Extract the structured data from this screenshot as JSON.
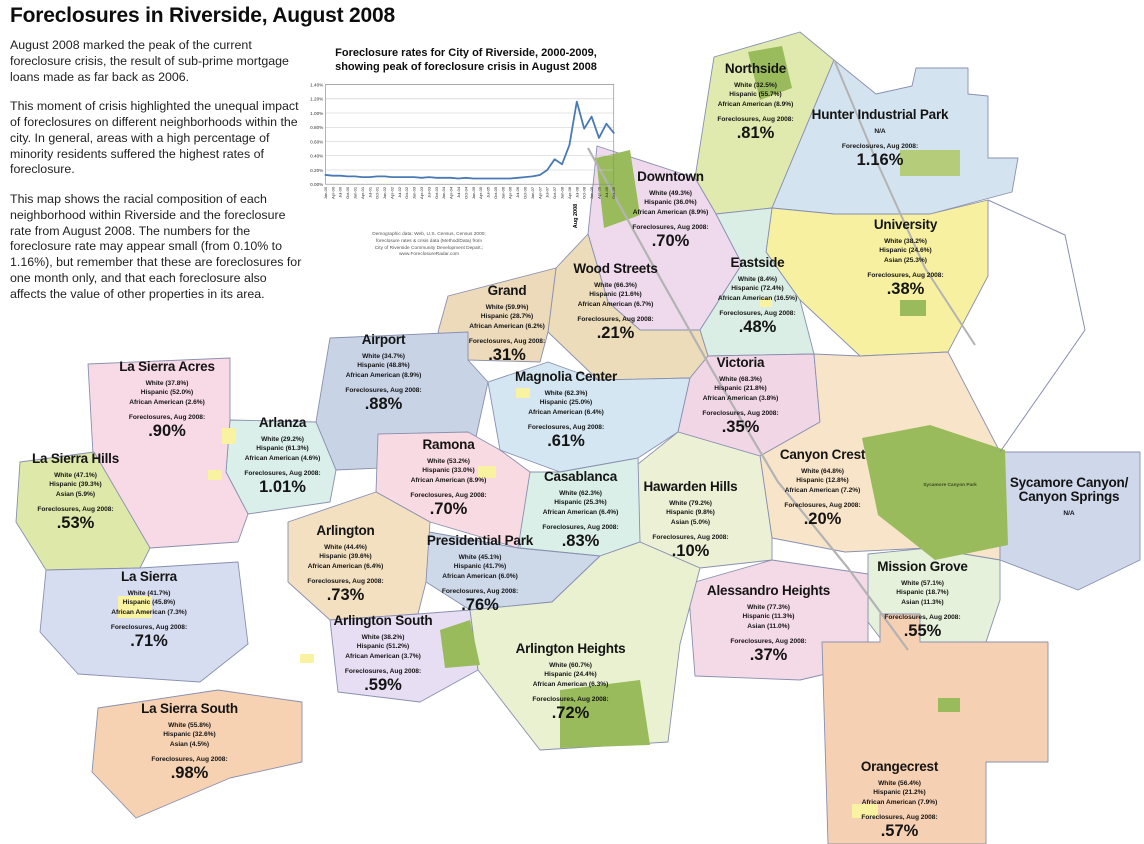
{
  "page_title": "Foreclosures in Riverside, August 2008",
  "intro": {
    "p1": "August 2008 marked the peak of the current foreclosure crisis, the result of sub-prime mortgage loans made as far back as 2006.",
    "p2": "This moment of crisis highlighted the unequal impact of foreclosures on different neighborhoods within the city. In general, areas with a high percentage of minority residents suffered the highest rates of foreclosure.",
    "p3": "This map shows the racial composition of each neighborhood within Riverside and the foreclosure rate from August 2008. The numbers for the foreclosure rate may appear small (from 0.10% to 1.16%), but remember that these are foreclosures for one month only, and that each foreclosure also affects the value of other properties in its area."
  },
  "chart": {
    "title_line1": "Foreclosure rates for City of Riverside, 2000-2009,",
    "title_line2": "showing peak of foreclosure crisis in August 2008",
    "source_lines": [
      "Demographic data: Web, U.S. Census, Census 2000;",
      "foreclosure rates & crisis data (Method/Data) from",
      "City of Riverside Community Development Depart.;",
      "www.ForeclosureRadar.com"
    ]
  },
  "chart_data": {
    "type": "line",
    "title": "Foreclosure rates for City of Riverside, 2000-2009, showing peak of foreclosure crisis in August 2008",
    "x": [
      "Jan-00",
      "Apr-00",
      "Jul-00",
      "Oct-00",
      "Jan-01",
      "Apr-01",
      "Jul-01",
      "Oct-01",
      "Jan-02",
      "Apr-02",
      "Jul-02",
      "Oct-02",
      "Jan-03",
      "Apr-03",
      "Jul-03",
      "Oct-03",
      "Jan-04",
      "Apr-04",
      "Jul-04",
      "Oct-04",
      "Jan-05",
      "Apr-05",
      "Jul-05",
      "Oct-05",
      "Jan-06",
      "Apr-06",
      "Jul-06",
      "Oct-06",
      "Jan-07",
      "Apr-07",
      "Jul-07",
      "Oct-07",
      "Jan-08",
      "Apr-08",
      "Jul-08",
      "Oct-08",
      "Jan-09",
      "Apr-09",
      "Jul-09",
      "Oct-09"
    ],
    "values": [
      0.13,
      0.12,
      0.12,
      0.11,
      0.11,
      0.1,
      0.1,
      0.11,
      0.11,
      0.1,
      0.1,
      0.1,
      0.1,
      0.09,
      0.1,
      0.09,
      0.09,
      0.09,
      0.08,
      0.09,
      0.08,
      0.08,
      0.08,
      0.08,
      0.08,
      0.08,
      0.09,
      0.1,
      0.11,
      0.13,
      0.2,
      0.35,
      0.28,
      0.55,
      1.16,
      0.78,
      0.95,
      0.65,
      0.85,
      0.72
    ],
    "ylim": [
      0,
      1.4
    ],
    "ytick_step": 0.2,
    "ylabel_format": "percent",
    "grid": true,
    "legend": "none",
    "line_color": "#4a7ab5",
    "annotation": {
      "label": "Aug 2008",
      "index": 34
    }
  },
  "labels": {
    "foreclosures_label": "Foreclosures, Aug 2008:",
    "park_label": "Sycamore Canyon Park"
  },
  "neighborhoods": [
    {
      "name": "Northside",
      "stats": [
        "White (32.5%)",
        "Hispanic (55.7%)",
        "African American (8.9%)"
      ],
      "rate": ".81%"
    },
    {
      "name": "Hunter Industrial Park",
      "stats": [
        "N/A"
      ],
      "rate": "1.16%"
    },
    {
      "name": "University",
      "stats": [
        "White (38.2%)",
        "Hispanic (24.6%)",
        "Asian (25.3%)"
      ],
      "rate": ".38%"
    },
    {
      "name": "Downtown",
      "stats": [
        "White (49.3%)",
        "Hispanic (36.0%)",
        "African American (8.9%)"
      ],
      "rate": ".70%"
    },
    {
      "name": "Eastside",
      "stats": [
        "White (8.4%)",
        "Hispanic (72.4%)",
        "African American (16.5%)"
      ],
      "rate": ".48%"
    },
    {
      "name": "Wood Streets",
      "stats": [
        "White (66.3%)",
        "Hispanic (21.6%)",
        "African American (6.7%)"
      ],
      "rate": ".21%"
    },
    {
      "name": "Grand",
      "stats": [
        "White (59.9%)",
        "Hispanic (28.7%)",
        "African American (6.2%)"
      ],
      "rate": ".31%"
    },
    {
      "name": "Airport",
      "stats": [
        "White (34.7%)",
        "Hispanic (48.8%)",
        "African American (8.9%)"
      ],
      "rate": ".88%"
    },
    {
      "name": "Magnolia Center",
      "stats": [
        "White (62.3%)",
        "Hispanic (25.0%)",
        "African American (6.4%)"
      ],
      "rate": ".61%"
    },
    {
      "name": "Victoria",
      "stats": [
        "White (68.3%)",
        "Hispanic (21.8%)",
        "African American (3.8%)"
      ],
      "rate": ".35%"
    },
    {
      "name": "Canyon Crest",
      "stats": [
        "White (64.8%)",
        "Hispanic (12.8%)",
        "African American (7.2%)"
      ],
      "rate": ".20%"
    },
    {
      "name": "Sycamore Canyon/ Canyon Springs",
      "stats": [
        "N/A"
      ]
    },
    {
      "name": "Mission Grove",
      "stats": [
        "White (57.1%)",
        "Hispanic (18.7%)",
        "Asian (11.3%)"
      ],
      "rate": ".55%"
    },
    {
      "name": "Alessandro Heights",
      "stats": [
        "White (77.3%)",
        "Hispanic (11.3%)",
        "Asian (11.0%)"
      ],
      "rate": ".37%"
    },
    {
      "name": "Hawarden Hills",
      "stats": [
        "White (79.2%)",
        "Hispanic (9.8%)",
        "Asian (5.0%)"
      ],
      "rate": ".10%"
    },
    {
      "name": "Casablanca",
      "stats": [
        "White (62.3%)",
        "Hispanic (25.3%)",
        "African American (6.4%)"
      ],
      "rate": ".83%"
    },
    {
      "name": "Ramona",
      "stats": [
        "White (53.2%)",
        "Hispanic (33.0%)",
        "African American (8.9%)"
      ],
      "rate": ".70%"
    },
    {
      "name": "Presidential Park",
      "stats": [
        "White (45.1%)",
        "Hispanic (41.7%)",
        "African American (6.0%)"
      ],
      "rate": ".76%"
    },
    {
      "name": "Arlington",
      "stats": [
        "White (44.4%)",
        "Hispanic (39.6%)",
        "African American (6.4%)"
      ],
      "rate": ".73%"
    },
    {
      "name": "Arlington South",
      "stats": [
        "White (38.2%)",
        "Hispanic (51.2%)",
        "African American (3.7%)"
      ],
      "rate": ".59%"
    },
    {
      "name": "Arlington Heights",
      "stats": [
        "White (60.7%)",
        "Hispanic (24.4%)",
        "African American (6.3%)"
      ],
      "rate": ".72%"
    },
    {
      "name": "Arlanza",
      "stats": [
        "White (29.2%)",
        "Hispanic (61.3%)",
        "African American (4.6%)"
      ],
      "rate": "1.01%"
    },
    {
      "name": "La Sierra Acres",
      "stats": [
        "White (37.8%)",
        "Hispanic (52.0%)",
        "African American (2.6%)"
      ],
      "rate": ".90%"
    },
    {
      "name": "La Sierra Hills",
      "stats": [
        "White (47.1%)",
        "Hispanic (39.3%)",
        "Asian (5.9%)"
      ],
      "rate": ".53%"
    },
    {
      "name": "La Sierra",
      "stats": [
        "White (41.7%)",
        "Hispanic (45.8%)",
        "African American (7.3%)"
      ],
      "rate": ".71%"
    },
    {
      "name": "La Sierra South",
      "stats": [
        "White (55.8%)",
        "Hispanic (32.6%)",
        "Asian (4.5%)"
      ],
      "rate": ".98%"
    },
    {
      "name": "Orangecrest",
      "stats": [
        "White (56.4%)",
        "Hispanic (21.2%)",
        "African American (7.9%)"
      ],
      "rate": ".57%"
    }
  ],
  "colors": {
    "region_stroke": "#8890b0",
    "road_gray": "#b3b3b3",
    "park_green": "#9abb5c",
    "patch_yellow": "#f9f2a0"
  }
}
